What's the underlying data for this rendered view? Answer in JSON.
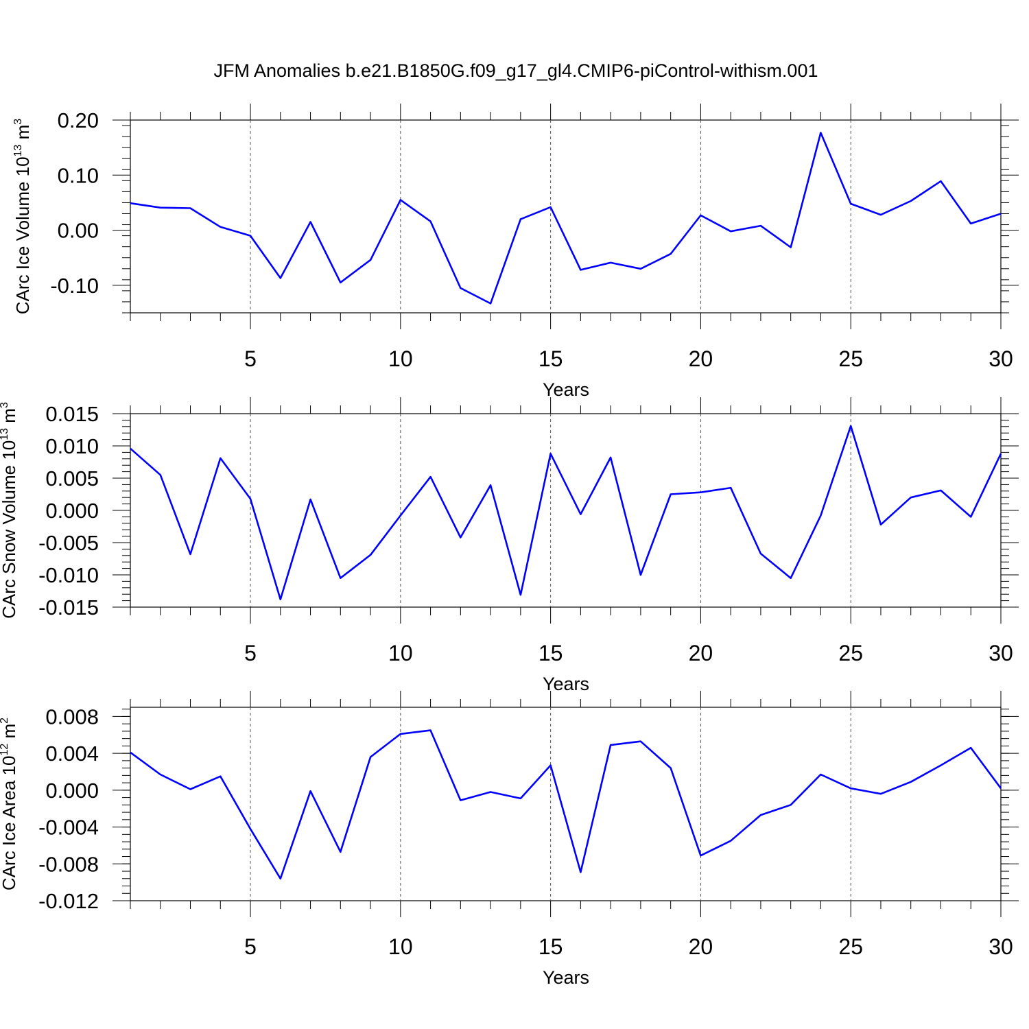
{
  "title": "JFM Anomalies b.e21.B1850G.f09_g17_gl4.CMIP6-piControl-withism.001",
  "chart_data": [
    {
      "type": "line",
      "ylabel": "CArc Ice Volume 10",
      "ylabel_exp": "13",
      "ylabel_unit": " m",
      "ylabel_unit_exp": "3",
      "xlabel": "Years",
      "xlim": [
        1,
        30
      ],
      "ylim": [
        -0.15,
        0.2
      ],
      "x_ticks": [
        5,
        10,
        15,
        20,
        25,
        30
      ],
      "x_tick_labels": [
        "5",
        "10",
        "15",
        "20",
        "25",
        "30"
      ],
      "y_ticks": [
        0.2,
        0.1,
        0.0,
        -0.1
      ],
      "y_tick_labels": [
        "0.20",
        "0.10",
        "0.00",
        "-0.10"
      ],
      "grid_x": [
        5,
        10,
        15,
        20,
        25
      ],
      "line_color": "#0000ff",
      "x": [
        1,
        2,
        3,
        4,
        5,
        6,
        7,
        8,
        9,
        10,
        11,
        12,
        13,
        14,
        15,
        16,
        17,
        18,
        19,
        20,
        21,
        22,
        23,
        24,
        25,
        26,
        27,
        28,
        29,
        30
      ],
      "values": [
        0.049,
        0.041,
        0.04,
        0.006,
        -0.01,
        -0.087,
        0.015,
        -0.095,
        -0.054,
        0.055,
        0.016,
        -0.105,
        -0.133,
        0.02,
        0.042,
        -0.072,
        -0.059,
        -0.07,
        -0.043,
        0.027,
        -0.002,
        0.008,
        -0.031,
        0.177,
        0.048,
        0.028,
        0.053,
        0.089,
        0.012,
        0.03
      ]
    },
    {
      "type": "line",
      "ylabel": "CArc Snow Volume 10",
      "ylabel_exp": "13",
      "ylabel_unit": " m",
      "ylabel_unit_exp": "3",
      "xlabel": "Years",
      "xlim": [
        1,
        30
      ],
      "ylim": [
        -0.015,
        0.015
      ],
      "x_ticks": [
        5,
        10,
        15,
        20,
        25,
        30
      ],
      "x_tick_labels": [
        "5",
        "10",
        "15",
        "20",
        "25",
        "30"
      ],
      "y_ticks": [
        0.015,
        0.01,
        0.005,
        0.0,
        -0.005,
        -0.01,
        -0.015
      ],
      "y_tick_labels": [
        "0.015",
        "0.010",
        "0.005",
        "0.000",
        "-0.005",
        "-0.010",
        "-0.015"
      ],
      "grid_x": [
        5,
        10,
        15,
        20,
        25
      ],
      "line_color": "#0000ff",
      "x": [
        1,
        2,
        3,
        4,
        5,
        6,
        7,
        8,
        9,
        10,
        11,
        12,
        13,
        14,
        15,
        16,
        17,
        18,
        19,
        20,
        21,
        22,
        23,
        24,
        25,
        26,
        27,
        28,
        29,
        30
      ],
      "values": [
        0.0096,
        0.0055,
        -0.0068,
        0.0081,
        0.0018,
        -0.0138,
        0.0017,
        -0.0105,
        -0.0069,
        -0.0008,
        0.0052,
        -0.0042,
        0.0039,
        -0.0131,
        0.0088,
        -0.0006,
        0.0082,
        -0.01,
        0.0025,
        0.0028,
        0.0035,
        -0.0067,
        -0.0105,
        -0.0008,
        0.0131,
        -0.0022,
        0.002,
        0.0031,
        -0.001,
        0.0088
      ]
    },
    {
      "type": "line",
      "ylabel": "CArc Ice Area 10",
      "ylabel_exp": "12",
      "ylabel_unit": " m",
      "ylabel_unit_exp": "2",
      "xlabel": "Years",
      "xlim": [
        1,
        30
      ],
      "ylim": [
        -0.012,
        0.009
      ],
      "x_ticks": [
        5,
        10,
        15,
        20,
        25,
        30
      ],
      "x_tick_labels": [
        "5",
        "10",
        "15",
        "20",
        "25",
        "30"
      ],
      "y_ticks": [
        0.008,
        0.004,
        0.0,
        -0.004,
        -0.008,
        -0.012
      ],
      "y_tick_labels": [
        "0.008",
        "0.004",
        "0.000",
        "-0.004",
        "-0.008",
        "-0.012"
      ],
      "grid_x": [
        5,
        10,
        15,
        20,
        25
      ],
      "line_color": "#0000ff",
      "x": [
        1,
        2,
        3,
        4,
        5,
        6,
        7,
        8,
        9,
        10,
        11,
        12,
        13,
        14,
        15,
        16,
        17,
        18,
        19,
        20,
        21,
        22,
        23,
        24,
        25,
        26,
        27,
        28,
        29,
        30
      ],
      "values": [
        0.0041,
        0.0017,
        0.0001,
        0.0015,
        -0.0042,
        -0.0096,
        -0.0001,
        -0.0067,
        0.0036,
        0.0061,
        0.0065,
        -0.0011,
        -0.0002,
        -0.0009,
        0.0027,
        -0.0089,
        0.0049,
        0.0053,
        0.0024,
        -0.0071,
        -0.0055,
        -0.0027,
        -0.0016,
        0.0017,
        0.0002,
        -0.0004,
        0.0009,
        0.0027,
        0.0046,
        0.0002
      ]
    }
  ]
}
